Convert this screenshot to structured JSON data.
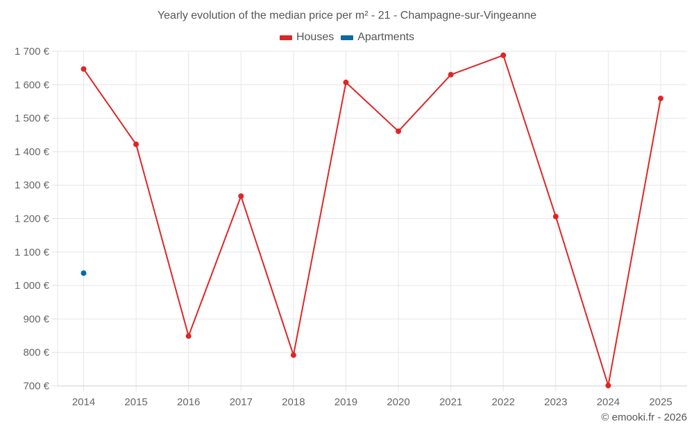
{
  "header": {
    "title": "Yearly evolution of the median price per m² - 21 - Champagne-sur-Vingeanne"
  },
  "legend": [
    {
      "label": "Houses",
      "color": "#dd2626"
    },
    {
      "label": "Apartments",
      "color": "#0a6aa1"
    }
  ],
  "footer": {
    "credit": "© emooki.fr - 2026"
  },
  "chart_data": {
    "type": "line",
    "title": "Yearly evolution of the median price per m² - 21 - Champagne-sur-Vingeanne",
    "xlabel": "",
    "ylabel": "",
    "categories": [
      "2014",
      "2015",
      "2016",
      "2017",
      "2018",
      "2019",
      "2020",
      "2021",
      "2022",
      "2023",
      "2024",
      "2025"
    ],
    "series": [
      {
        "name": "Houses",
        "color": "#dd2626",
        "values": [
          1647,
          1422,
          849,
          1267,
          792,
          1607,
          1461,
          1630,
          1688,
          1206,
          701,
          1559
        ]
      },
      {
        "name": "Apartments",
        "color": "#0a6aa1",
        "values": [
          1037,
          null,
          null,
          null,
          null,
          null,
          null,
          null,
          null,
          null,
          null,
          null
        ]
      }
    ],
    "ylim": [
      700,
      1700
    ],
    "yticks": [
      700,
      800,
      900,
      1000,
      1100,
      1200,
      1300,
      1400,
      1500,
      1600,
      1700
    ],
    "ytick_labels": [
      "700 €",
      "800 €",
      "900 €",
      "1 000 €",
      "1 100 €",
      "1 200 €",
      "1 300 €",
      "1 400 €",
      "1 500 €",
      "1 600 €",
      "1 700 €"
    ],
    "grid": true,
    "legend_position": "top"
  }
}
